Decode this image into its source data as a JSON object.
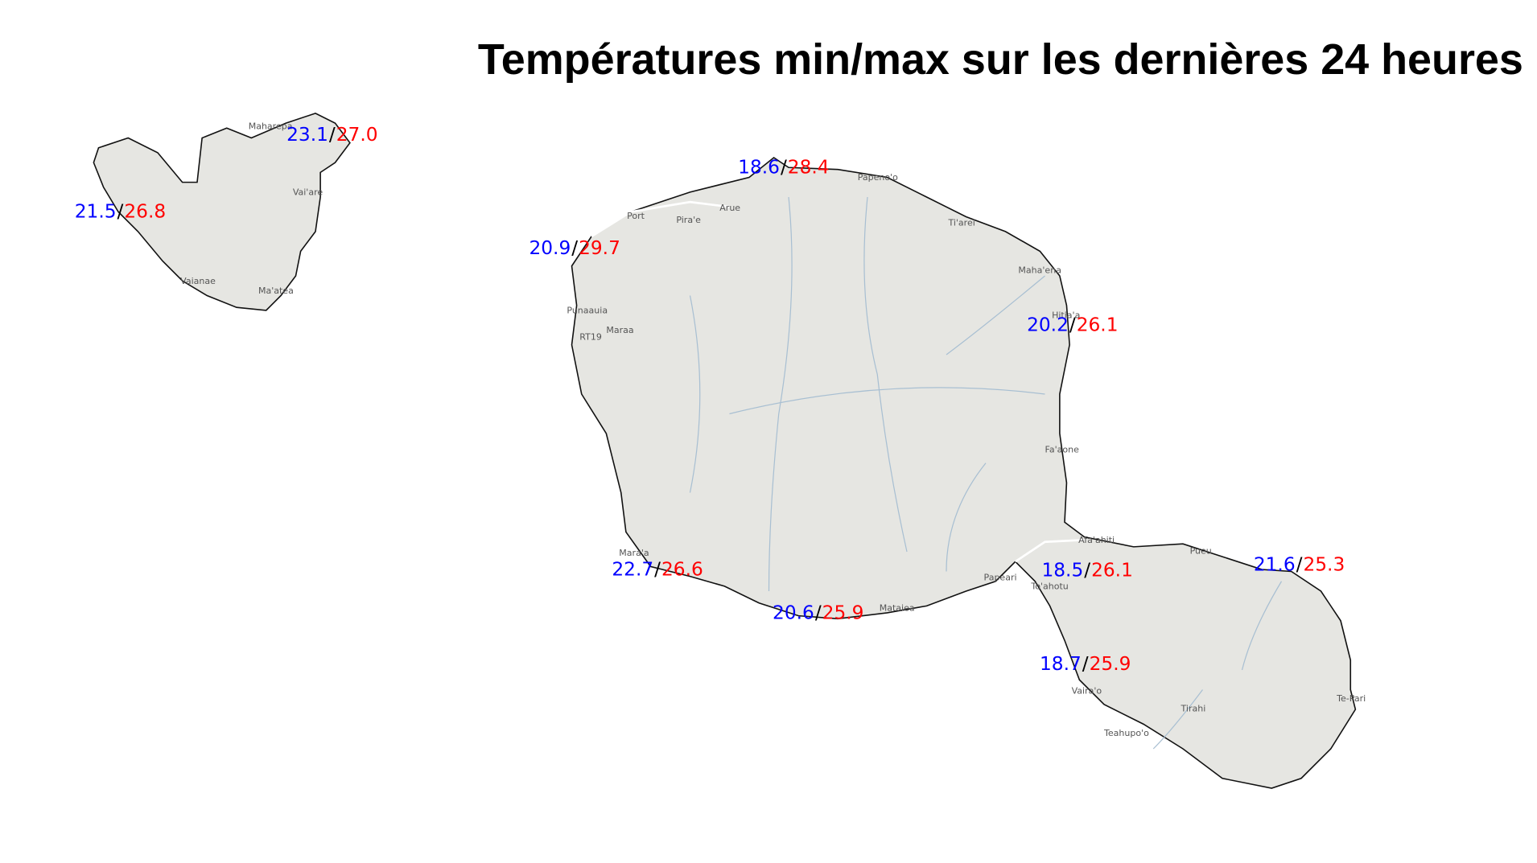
{
  "title": "Températures min/max sur les dernières 24 heures",
  "separator": "/",
  "stations": [
    {
      "min": "23.1",
      "max": "27.0"
    },
    {
      "min": "21.5",
      "max": "26.8"
    },
    {
      "min": "18.6",
      "max": "28.4"
    },
    {
      "min": "20.9",
      "max": "29.7"
    },
    {
      "min": "20.2",
      "max": "26.1"
    },
    {
      "min": "22.7",
      "max": "26.6"
    },
    {
      "min": "20.6",
      "max": "25.9"
    },
    {
      "min": "18.5",
      "max": "26.1"
    },
    {
      "min": "21.6",
      "max": "25.3"
    },
    {
      "min": "18.7",
      "max": "25.9"
    }
  ],
  "places": [
    "Maharepa",
    "Vai'are",
    "Vaianae",
    "Ma'atea",
    "Papeno'o",
    "Ti'arei",
    "Maha'ena",
    "Hitia'a",
    "Fa'aone",
    "Afa'ahiti",
    "Pueu",
    "Te-Pari",
    "Teahupo'o",
    "Vaira'o",
    "To'ahotu",
    "Papeari",
    "Mataiea",
    "Mara'a",
    "Punaauia",
    "Port",
    "Pira'e",
    "Arue",
    "Maraa",
    "RT19",
    "Tirahi"
  ]
}
